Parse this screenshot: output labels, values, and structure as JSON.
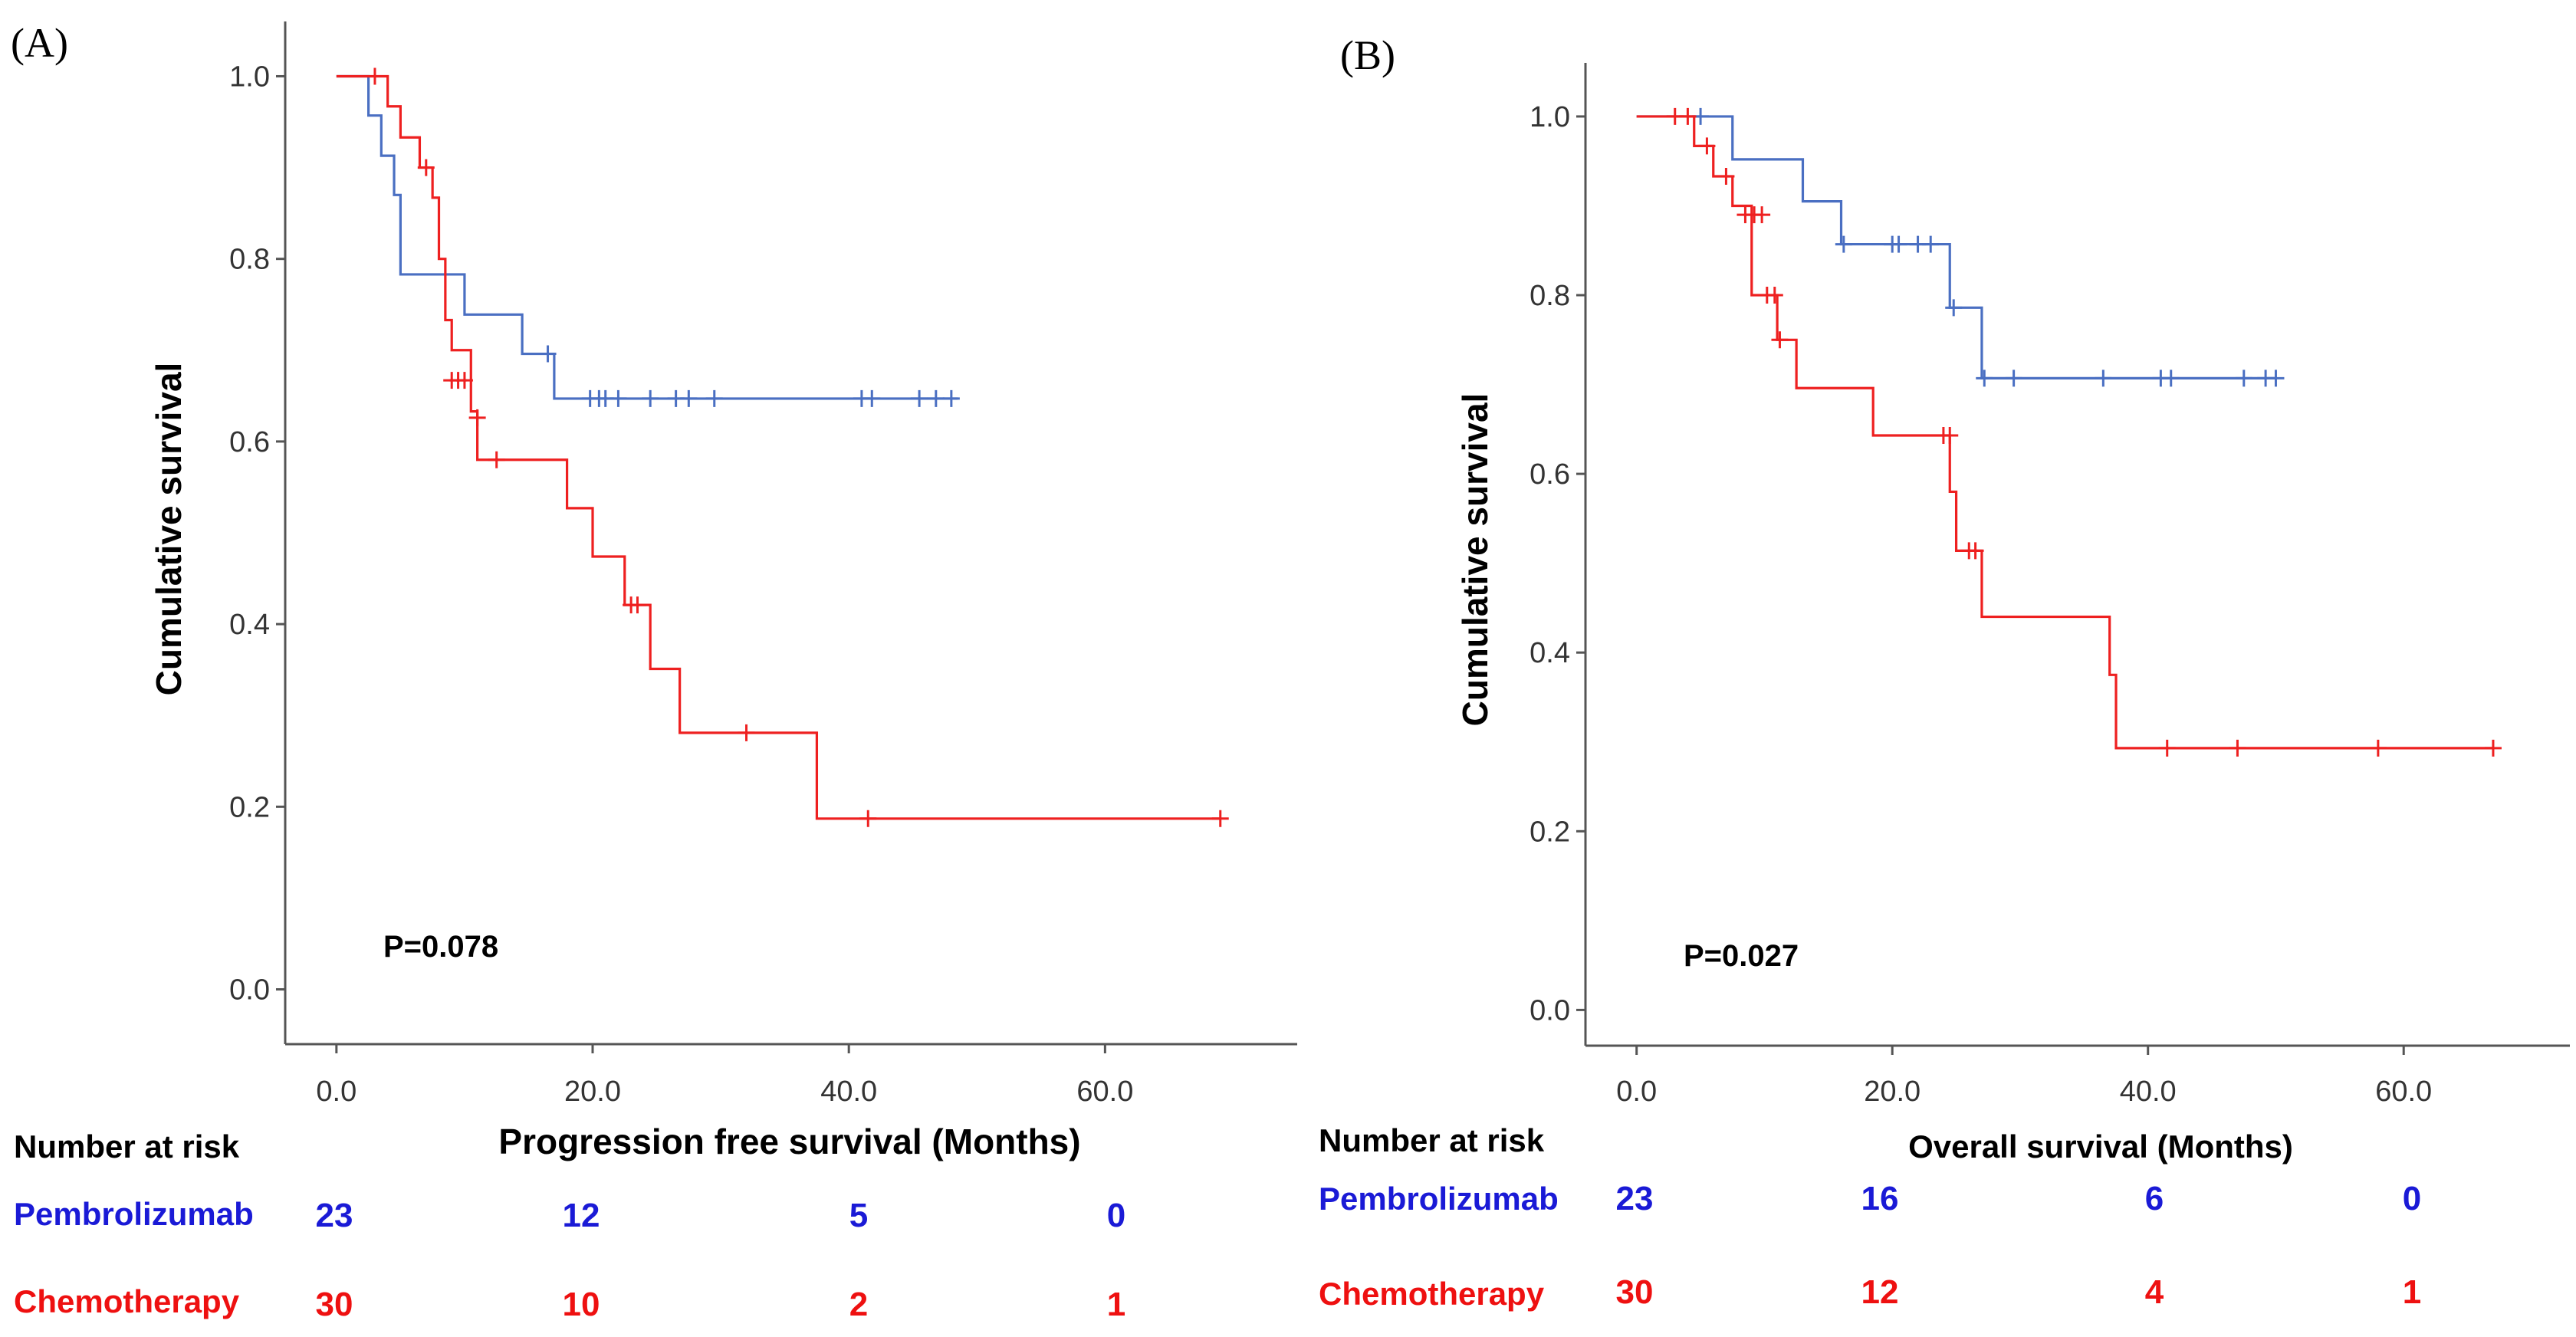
{
  "colors": {
    "pembrolizumab": "#4a6fc2",
    "chemotherapy": "#ee2020",
    "risk_pembrolizumab": "#1a1ad6",
    "risk_chemotherapy": "#ee1010"
  },
  "chart_data": [
    {
      "type": "line",
      "panel_label": "(A)",
      "xlabel": "Progression free survival (Months)",
      "ylabel": "Cumulative survival",
      "xlim": [
        -4,
        75
      ],
      "ylim": [
        -0.06,
        1.06
      ],
      "x_ticks": [
        0,
        20,
        40,
        60
      ],
      "x_tick_labels": [
        "0.0",
        "20.0",
        "40.0",
        "60.0"
      ],
      "y_ticks": [
        0,
        0.2,
        0.4,
        0.6,
        0.8,
        1.0
      ],
      "y_tick_labels": [
        "0.0",
        "0.2",
        "0.4",
        "0.6",
        "0.8",
        "1.0"
      ],
      "p_value": "P=0.078",
      "series": [
        {
          "name": "Pembrolizumab",
          "steps": [
            [
              0,
              1.0
            ],
            [
              2.5,
              0.957
            ],
            [
              3.5,
              0.913
            ],
            [
              4.5,
              0.87
            ],
            [
              5.0,
              0.783
            ],
            [
              10.0,
              0.739
            ],
            [
              14.5,
              0.696
            ],
            [
              17.0,
              0.647
            ],
            [
              48.5,
              0.647
            ]
          ],
          "censored": [
            [
              16.5,
              0.696
            ],
            [
              19.8,
              0.647
            ],
            [
              20.5,
              0.647
            ],
            [
              21.0,
              0.647
            ],
            [
              22.0,
              0.647
            ],
            [
              24.5,
              0.647
            ],
            [
              26.5,
              0.647
            ],
            [
              27.5,
              0.647
            ],
            [
              29.5,
              0.647
            ],
            [
              41.0,
              0.647
            ],
            [
              41.8,
              0.647
            ],
            [
              45.5,
              0.647
            ],
            [
              46.8,
              0.647
            ],
            [
              48.0,
              0.647
            ]
          ]
        },
        {
          "name": "Chemotherapy",
          "steps": [
            [
              0,
              1.0
            ],
            [
              3.0,
              1.0
            ],
            [
              4.0,
              0.967
            ],
            [
              5.0,
              0.933
            ],
            [
              6.5,
              0.9
            ],
            [
              7.5,
              0.867
            ],
            [
              8.0,
              0.8
            ],
            [
              8.5,
              0.733
            ],
            [
              9.0,
              0.7
            ],
            [
              10.5,
              0.633
            ],
            [
              11.0,
              0.58
            ],
            [
              18.0,
              0.527
            ],
            [
              20.0,
              0.474
            ],
            [
              22.5,
              0.421
            ],
            [
              24.5,
              0.351
            ],
            [
              26.8,
              0.281
            ],
            [
              37.5,
              0.187
            ],
            [
              69.0,
              0.187
            ]
          ],
          "censored": [
            [
              3.0,
              1.0
            ],
            [
              7.0,
              0.9
            ],
            [
              9.0,
              0.667
            ],
            [
              9.5,
              0.667
            ],
            [
              10.0,
              0.667
            ],
            [
              11.0,
              0.626
            ],
            [
              12.5,
              0.58
            ],
            [
              23.0,
              0.421
            ],
            [
              23.5,
              0.421
            ],
            [
              32.0,
              0.281
            ],
            [
              41.5,
              0.187
            ],
            [
              69.0,
              0.187
            ]
          ]
        }
      ],
      "risk_table": {
        "header": "Number at risk",
        "rows": [
          {
            "label": "Pembrolizumab",
            "counts": [
              "23",
              "12",
              "5",
              "0"
            ]
          },
          {
            "label": "Chemotherapy",
            "counts": [
              "30",
              "10",
              "2",
              "1"
            ]
          }
        ]
      }
    },
    {
      "type": "line",
      "panel_label": "(B)",
      "xlabel": "Overall survival (Months)",
      "ylabel": "Cumulative survival",
      "xlim": [
        -4,
        73
      ],
      "ylim": [
        -0.04,
        1.06
      ],
      "x_ticks": [
        0,
        20,
        40,
        60
      ],
      "x_tick_labels": [
        "0.0",
        "20.0",
        "40.0",
        "60.0"
      ],
      "y_ticks": [
        0,
        0.2,
        0.4,
        0.6,
        0.8,
        1.0
      ],
      "y_tick_labels": [
        "0.0",
        "0.2",
        "0.4",
        "0.6",
        "0.8",
        "1.0"
      ],
      "p_value": "P=0.027",
      "series": [
        {
          "name": "Pembrolizumab",
          "steps": [
            [
              0,
              1.0
            ],
            [
              7.5,
              0.952
            ],
            [
              13.0,
              0.905
            ],
            [
              16.0,
              0.857
            ],
            [
              24.5,
              0.786
            ],
            [
              27.0,
              0.707
            ],
            [
              50.0,
              0.707
            ]
          ],
          "censored": [
            [
              5.0,
              1.0
            ],
            [
              16.2,
              0.857
            ],
            [
              20.0,
              0.857
            ],
            [
              20.5,
              0.857
            ],
            [
              22.0,
              0.857
            ],
            [
              23.0,
              0.857
            ],
            [
              24.8,
              0.786
            ],
            [
              27.2,
              0.707
            ],
            [
              29.5,
              0.707
            ],
            [
              36.5,
              0.707
            ],
            [
              41.0,
              0.707
            ],
            [
              41.8,
              0.707
            ],
            [
              47.5,
              0.707
            ],
            [
              49.2,
              0.707
            ],
            [
              50.0,
              0.707
            ]
          ]
        },
        {
          "name": "Chemotherapy",
          "steps": [
            [
              0,
              1.0
            ],
            [
              4.5,
              0.967
            ],
            [
              6.0,
              0.933
            ],
            [
              7.5,
              0.9
            ],
            [
              9.0,
              0.8
            ],
            [
              11.0,
              0.75
            ],
            [
              12.5,
              0.696
            ],
            [
              18.5,
              0.643
            ],
            [
              24.5,
              0.58
            ],
            [
              25.0,
              0.514
            ],
            [
              27.0,
              0.44
            ],
            [
              37.0,
              0.375
            ],
            [
              37.5,
              0.293
            ],
            [
              67.0,
              0.293
            ]
          ],
          "censored": [
            [
              3.0,
              1.0
            ],
            [
              4.0,
              1.0
            ],
            [
              5.5,
              0.967
            ],
            [
              7.0,
              0.933
            ],
            [
              8.5,
              0.89
            ],
            [
              9.2,
              0.89
            ],
            [
              9.8,
              0.89
            ],
            [
              10.2,
              0.8
            ],
            [
              10.8,
              0.8
            ],
            [
              11.2,
              0.75
            ],
            [
              24.0,
              0.643
            ],
            [
              24.5,
              0.643
            ],
            [
              26.0,
              0.514
            ],
            [
              26.5,
              0.514
            ],
            [
              41.5,
              0.293
            ],
            [
              47.0,
              0.293
            ],
            [
              58.0,
              0.293
            ],
            [
              67.0,
              0.293
            ]
          ]
        }
      ],
      "risk_table": {
        "header": "Number at risk",
        "rows": [
          {
            "label": "Pembrolizumab",
            "counts": [
              "23",
              "16",
              "6",
              "0"
            ]
          },
          {
            "label": "Chemotherapy",
            "counts": [
              "30",
              "12",
              "4",
              "1"
            ]
          }
        ]
      }
    }
  ]
}
